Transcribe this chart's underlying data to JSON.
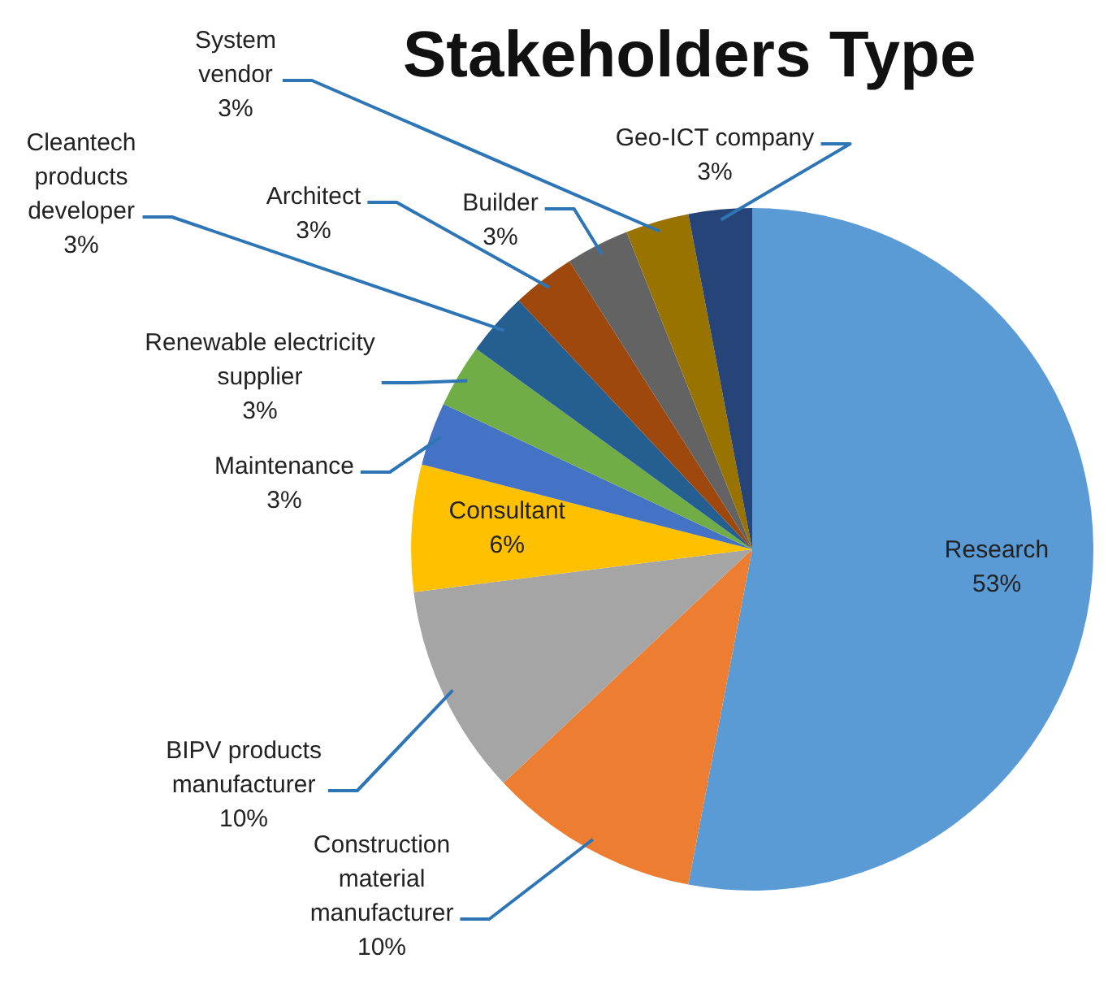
{
  "chart_data": {
    "type": "pie",
    "title": "Stakeholders Type",
    "categories": [
      "Research",
      "Construction material manufacturer",
      "BIPV products manufacturer",
      "Consultant",
      "Maintenance",
      "Renewable electricity supplier",
      "Cleantech products developer",
      "Architect",
      "Builder",
      "System vendor",
      "Geo-ICT company"
    ],
    "values": [
      53,
      10,
      10,
      6,
      3,
      3,
      3,
      3,
      3,
      3,
      3
    ],
    "value_labels": [
      "53%",
      "10%",
      "10%",
      "6%",
      "3%",
      "3%",
      "3%",
      "3%",
      "3%",
      "3%",
      "3%"
    ],
    "colors": [
      "#5b9bd5",
      "#ed7d31",
      "#a5a5a5",
      "#ffc000",
      "#4472c4",
      "#70ad47",
      "#255e91",
      "#9e480e",
      "#636363",
      "#997300",
      "#264478"
    ],
    "legend": false
  }
}
